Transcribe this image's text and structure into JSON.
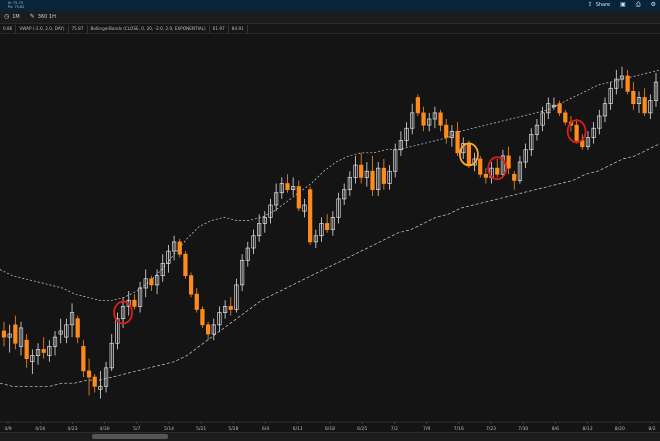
{
  "header": {
    "small_line_1": "N: 75.75",
    "small_line_2": "Px: 75.82",
    "share_label": "Share",
    "share_icon": "share-icon",
    "window_icon": "window-icon",
    "print_icon": "print-icon",
    "settings_icon": "gear-icon"
  },
  "toolbar": {
    "timeframe_label": "1M",
    "timeframe_icon": "clock-icon",
    "period_label": "360 1H",
    "period_icon": "pencil-icon"
  },
  "studies": {
    "items": [
      "0.86",
      "VWAP (-2.0, 2.0, DAY)",
      "75.87",
      "BollingerBands (CLOSE, 0, 20, -2.0, 2.0, EXPONENTIAL)",
      "61.97",
      "84.91"
    ]
  },
  "colors": {
    "background": "#141414",
    "up_candle": "#e0e0e0",
    "down_candle": "#ff8c1a",
    "band": "#cfcfcf",
    "highlight_red": "#e01b1b",
    "highlight_orange": "#ffa733"
  },
  "chart_data": {
    "type": "candlestick",
    "x_ticks": [
      "4/9",
      "4/16",
      "4/23",
      "4/30",
      "5/7",
      "5/14",
      "5/21",
      "5/28",
      "6/4",
      "6/11",
      "6/18",
      "6/25",
      "7/2",
      "7/9",
      "7/16",
      "7/23",
      "7/30",
      "8/6",
      "8/13",
      "8/20",
      "8/2"
    ],
    "candles": [
      {
        "o": 45.8,
        "h": 46.1,
        "l": 45.3,
        "c": 45.6
      },
      {
        "o": 45.6,
        "h": 46.0,
        "l": 45.1,
        "c": 45.7
      },
      {
        "o": 46.0,
        "h": 46.3,
        "l": 45.2,
        "c": 45.4
      },
      {
        "o": 45.3,
        "h": 46.1,
        "l": 45.0,
        "c": 45.9
      },
      {
        "o": 45.5,
        "h": 45.7,
        "l": 44.6,
        "c": 44.9
      },
      {
        "o": 44.8,
        "h": 45.2,
        "l": 44.4,
        "c": 45.0
      },
      {
        "o": 45.0,
        "h": 45.4,
        "l": 44.7,
        "c": 45.2
      },
      {
        "o": 45.2,
        "h": 45.6,
        "l": 44.9,
        "c": 45.1
      },
      {
        "o": 45.0,
        "h": 45.5,
        "l": 44.8,
        "c": 45.3
      },
      {
        "o": 45.3,
        "h": 45.8,
        "l": 45.0,
        "c": 45.6
      },
      {
        "o": 45.7,
        "h": 46.2,
        "l": 45.4,
        "c": 45.8
      },
      {
        "o": 45.6,
        "h": 46.2,
        "l": 45.4,
        "c": 46.0
      },
      {
        "o": 46.0,
        "h": 46.7,
        "l": 45.6,
        "c": 46.4
      },
      {
        "o": 46.2,
        "h": 46.3,
        "l": 45.4,
        "c": 45.6
      },
      {
        "o": 45.3,
        "h": 45.5,
        "l": 44.3,
        "c": 44.5
      },
      {
        "o": 44.5,
        "h": 44.9,
        "l": 43.7,
        "c": 44.3
      },
      {
        "o": 44.3,
        "h": 44.4,
        "l": 43.8,
        "c": 44.0
      },
      {
        "o": 43.9,
        "h": 44.5,
        "l": 43.6,
        "c": 44.0
      },
      {
        "o": 44.0,
        "h": 44.8,
        "l": 43.8,
        "c": 44.6
      },
      {
        "o": 44.6,
        "h": 45.7,
        "l": 44.5,
        "c": 45.4
      },
      {
        "o": 45.4,
        "h": 46.4,
        "l": 45.2,
        "c": 46.2
      },
      {
        "o": 46.2,
        "h": 46.9,
        "l": 45.9,
        "c": 46.6
      },
      {
        "o": 46.6,
        "h": 47.1,
        "l": 46.3,
        "c": 46.8
      },
      {
        "o": 46.8,
        "h": 47.0,
        "l": 46.5,
        "c": 46.6
      },
      {
        "o": 46.6,
        "h": 47.4,
        "l": 46.4,
        "c": 47.2
      },
      {
        "o": 47.2,
        "h": 47.8,
        "l": 46.9,
        "c": 47.5
      },
      {
        "o": 47.5,
        "h": 47.6,
        "l": 47.1,
        "c": 47.3
      },
      {
        "o": 47.3,
        "h": 47.8,
        "l": 47.0,
        "c": 47.6
      },
      {
        "o": 47.6,
        "h": 48.3,
        "l": 47.4,
        "c": 48.0
      },
      {
        "o": 48.0,
        "h": 48.6,
        "l": 47.7,
        "c": 48.4
      },
      {
        "o": 48.4,
        "h": 48.9,
        "l": 48.1,
        "c": 48.7
      },
      {
        "o": 48.7,
        "h": 48.8,
        "l": 48.2,
        "c": 48.3
      },
      {
        "o": 48.3,
        "h": 48.4,
        "l": 47.5,
        "c": 47.6
      },
      {
        "o": 47.6,
        "h": 47.7,
        "l": 46.9,
        "c": 47.0
      },
      {
        "o": 47.0,
        "h": 47.2,
        "l": 46.4,
        "c": 46.5
      },
      {
        "o": 46.5,
        "h": 46.6,
        "l": 45.9,
        "c": 46.0
      },
      {
        "o": 46.0,
        "h": 46.1,
        "l": 45.5,
        "c": 45.7
      },
      {
        "o": 45.7,
        "h": 46.2,
        "l": 45.5,
        "c": 46.0
      },
      {
        "o": 46.0,
        "h": 46.6,
        "l": 45.8,
        "c": 46.4
      },
      {
        "o": 46.4,
        "h": 46.8,
        "l": 46.2,
        "c": 46.6
      },
      {
        "o": 46.6,
        "h": 46.9,
        "l": 46.3,
        "c": 46.5
      },
      {
        "o": 46.5,
        "h": 47.5,
        "l": 46.4,
        "c": 47.3
      },
      {
        "o": 47.3,
        "h": 48.3,
        "l": 47.1,
        "c": 48.1
      },
      {
        "o": 48.1,
        "h": 48.7,
        "l": 47.9,
        "c": 48.5
      },
      {
        "o": 48.5,
        "h": 49.1,
        "l": 48.3,
        "c": 48.9
      },
      {
        "o": 48.9,
        "h": 49.6,
        "l": 48.7,
        "c": 49.3
      },
      {
        "o": 49.3,
        "h": 49.7,
        "l": 49.0,
        "c": 49.5
      },
      {
        "o": 49.5,
        "h": 50.1,
        "l": 49.3,
        "c": 49.9
      },
      {
        "o": 49.9,
        "h": 50.6,
        "l": 49.7,
        "c": 50.3
      },
      {
        "o": 50.3,
        "h": 50.8,
        "l": 50.1,
        "c": 50.6
      },
      {
        "o": 50.6,
        "h": 50.9,
        "l": 50.3,
        "c": 50.4
      },
      {
        "o": 50.4,
        "h": 50.8,
        "l": 50.2,
        "c": 50.5
      },
      {
        "o": 50.5,
        "h": 50.7,
        "l": 49.7,
        "c": 49.8
      },
      {
        "o": 49.7,
        "h": 50.1,
        "l": 49.5,
        "c": 49.9
      },
      {
        "o": 50.4,
        "h": 50.5,
        "l": 48.6,
        "c": 48.7
      },
      {
        "o": 48.7,
        "h": 49.1,
        "l": 48.5,
        "c": 48.9
      },
      {
        "o": 48.9,
        "h": 49.5,
        "l": 48.7,
        "c": 49.3
      },
      {
        "o": 49.3,
        "h": 49.6,
        "l": 49.0,
        "c": 49.1
      },
      {
        "o": 49.1,
        "h": 49.7,
        "l": 48.9,
        "c": 49.5
      },
      {
        "o": 49.5,
        "h": 50.3,
        "l": 49.3,
        "c": 50.1
      },
      {
        "o": 50.1,
        "h": 50.6,
        "l": 49.9,
        "c": 50.4
      },
      {
        "o": 50.4,
        "h": 51.0,
        "l": 50.2,
        "c": 50.8
      },
      {
        "o": 50.8,
        "h": 51.5,
        "l": 50.6,
        "c": 51.2
      },
      {
        "o": 51.2,
        "h": 51.6,
        "l": 50.6,
        "c": 50.8
      },
      {
        "o": 50.8,
        "h": 51.3,
        "l": 50.5,
        "c": 51.0
      },
      {
        "o": 51.0,
        "h": 51.5,
        "l": 50.2,
        "c": 50.4
      },
      {
        "o": 50.4,
        "h": 51.3,
        "l": 50.2,
        "c": 51.1
      },
      {
        "o": 51.1,
        "h": 51.4,
        "l": 50.4,
        "c": 50.6
      },
      {
        "o": 50.6,
        "h": 51.2,
        "l": 50.4,
        "c": 51.0
      },
      {
        "o": 51.0,
        "h": 51.9,
        "l": 50.8,
        "c": 51.7
      },
      {
        "o": 51.7,
        "h": 52.3,
        "l": 51.5,
        "c": 52.0
      },
      {
        "o": 52.0,
        "h": 52.6,
        "l": 51.8,
        "c": 52.4
      },
      {
        "o": 52.4,
        "h": 53.2,
        "l": 52.2,
        "c": 52.9
      },
      {
        "o": 53.4,
        "h": 53.5,
        "l": 52.8,
        "c": 52.9
      },
      {
        "o": 52.9,
        "h": 53.1,
        "l": 52.3,
        "c": 52.5
      },
      {
        "o": 52.5,
        "h": 52.9,
        "l": 52.3,
        "c": 52.7
      },
      {
        "o": 52.7,
        "h": 53.1,
        "l": 52.4,
        "c": 52.9
      },
      {
        "o": 52.9,
        "h": 53.0,
        "l": 52.3,
        "c": 52.5
      },
      {
        "o": 52.5,
        "h": 52.7,
        "l": 51.9,
        "c": 52.1
      },
      {
        "o": 52.1,
        "h": 52.5,
        "l": 51.8,
        "c": 52.3
      },
      {
        "o": 52.3,
        "h": 52.6,
        "l": 51.5,
        "c": 51.6
      },
      {
        "o": 51.6,
        "h": 52.1,
        "l": 51.4,
        "c": 51.9
      },
      {
        "o": 51.9,
        "h": 52.0,
        "l": 51.1,
        "c": 51.2
      },
      {
        "o": 51.2,
        "h": 51.6,
        "l": 51.0,
        "c": 51.4
      },
      {
        "o": 51.4,
        "h": 51.5,
        "l": 50.8,
        "c": 50.9
      },
      {
        "o": 50.9,
        "h": 51.1,
        "l": 50.6,
        "c": 50.8
      },
      {
        "o": 50.8,
        "h": 51.3,
        "l": 50.6,
        "c": 51.1
      },
      {
        "o": 51.1,
        "h": 51.4,
        "l": 50.8,
        "c": 50.9
      },
      {
        "o": 50.9,
        "h": 51.7,
        "l": 50.8,
        "c": 51.5
      },
      {
        "o": 51.5,
        "h": 51.8,
        "l": 50.9,
        "c": 51.1
      },
      {
        "o": 50.9,
        "h": 51.0,
        "l": 50.4,
        "c": 50.7
      },
      {
        "o": 50.7,
        "h": 51.5,
        "l": 50.6,
        "c": 51.3
      },
      {
        "o": 51.3,
        "h": 51.9,
        "l": 51.1,
        "c": 51.7
      },
      {
        "o": 51.7,
        "h": 52.4,
        "l": 51.5,
        "c": 52.2
      },
      {
        "o": 52.2,
        "h": 52.7,
        "l": 52.0,
        "c": 52.5
      },
      {
        "o": 52.5,
        "h": 53.1,
        "l": 52.3,
        "c": 52.9
      },
      {
        "o": 52.9,
        "h": 53.4,
        "l": 52.7,
        "c": 53.2
      },
      {
        "o": 53.1,
        "h": 53.4,
        "l": 53.0,
        "c": 53.15
      },
      {
        "o": 53.2,
        "h": 53.3,
        "l": 52.8,
        "c": 52.9
      },
      {
        "o": 52.9,
        "h": 53.0,
        "l": 52.5,
        "c": 52.6
      },
      {
        "o": 52.6,
        "h": 52.8,
        "l": 52.3,
        "c": 52.5
      },
      {
        "o": 52.5,
        "h": 52.7,
        "l": 51.9,
        "c": 52.0
      },
      {
        "o": 52.0,
        "h": 52.2,
        "l": 51.7,
        "c": 51.8
      },
      {
        "o": 51.8,
        "h": 52.3,
        "l": 51.7,
        "c": 52.1
      },
      {
        "o": 52.1,
        "h": 52.6,
        "l": 51.9,
        "c": 52.4
      },
      {
        "o": 52.4,
        "h": 53.0,
        "l": 52.2,
        "c": 52.8
      },
      {
        "o": 52.8,
        "h": 53.4,
        "l": 52.6,
        "c": 53.2
      },
      {
        "o": 53.2,
        "h": 53.9,
        "l": 53.0,
        "c": 53.7
      },
      {
        "o": 53.7,
        "h": 54.3,
        "l": 53.5,
        "c": 54.0
      },
      {
        "o": 54.0,
        "h": 54.4,
        "l": 53.7,
        "c": 54.1
      },
      {
        "o": 54.1,
        "h": 54.3,
        "l": 53.5,
        "c": 53.6
      },
      {
        "o": 53.6,
        "h": 53.9,
        "l": 53.0,
        "c": 53.2
      },
      {
        "o": 53.2,
        "h": 53.6,
        "l": 52.9,
        "c": 53.4
      },
      {
        "o": 53.4,
        "h": 53.7,
        "l": 52.8,
        "c": 52.9
      },
      {
        "o": 52.9,
        "h": 53.5,
        "l": 52.7,
        "c": 53.3
      },
      {
        "o": 53.3,
        "h": 54.2,
        "l": 53.1,
        "c": 53.9
      }
    ],
    "upper_band": [
      47.8,
      47.6,
      47.5,
      47.4,
      47.3,
      47.2,
      47.0,
      46.9,
      46.8,
      46.8,
      46.9,
      47.1,
      47.4,
      47.8,
      48.3,
      48.8,
      49.2,
      49.4,
      49.5,
      49.4,
      49.4,
      49.5,
      49.7,
      50.0,
      50.3,
      50.6,
      51.0,
      51.3,
      51.5,
      51.6,
      51.6,
      51.7,
      51.7,
      51.8,
      51.9,
      52.0,
      52.1,
      52.3,
      52.4,
      52.5,
      52.6,
      52.7,
      52.8,
      52.9,
      53.0,
      53.2,
      53.4,
      53.6,
      53.8,
      53.9,
      54.0,
      54.1,
      54.2,
      54.3
    ],
    "lower_band": [
      44.1,
      44.0,
      44.0,
      44.0,
      44.0,
      44.1,
      44.1,
      44.2,
      44.2,
      44.3,
      44.4,
      44.5,
      44.6,
      44.7,
      44.8,
      45.0,
      45.3,
      45.6,
      45.9,
      46.2,
      46.5,
      46.8,
      47.0,
      47.2,
      47.4,
      47.6,
      47.8,
      48.0,
      48.2,
      48.4,
      48.6,
      48.8,
      49.0,
      49.1,
      49.3,
      49.5,
      49.6,
      49.8,
      49.9,
      50.0,
      50.1,
      50.2,
      50.3,
      50.4,
      50.5,
      50.6,
      50.7,
      50.9,
      51.0,
      51.2,
      51.4,
      51.5,
      51.7,
      51.9
    ],
    "highlights": [
      {
        "candle": 21,
        "color": "red",
        "label": ""
      },
      {
        "candle": 82,
        "color": "orange",
        "label": ""
      },
      {
        "candle": 87,
        "color": "red",
        "label": ""
      },
      {
        "candle": 101,
        "color": "red",
        "label": ""
      }
    ],
    "grid": false,
    "legend": "none"
  }
}
